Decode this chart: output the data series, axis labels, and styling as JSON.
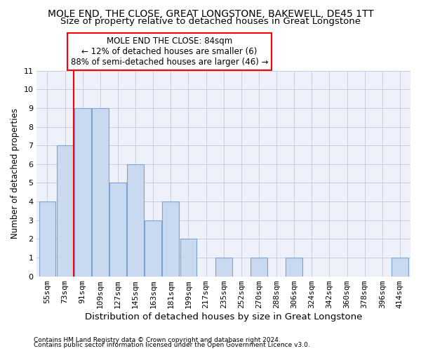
{
  "title": "MOLE END, THE CLOSE, GREAT LONGSTONE, BAKEWELL, DE45 1TT",
  "subtitle": "Size of property relative to detached houses in Great Longstone",
  "xlabel": "Distribution of detached houses by size in Great Longstone",
  "ylabel": "Number of detached properties",
  "categories": [
    "55sqm",
    "73sqm",
    "91sqm",
    "109sqm",
    "127sqm",
    "145sqm",
    "163sqm",
    "181sqm",
    "199sqm",
    "217sqm",
    "235sqm",
    "252sqm",
    "270sqm",
    "288sqm",
    "306sqm",
    "324sqm",
    "342sqm",
    "360sqm",
    "378sqm",
    "396sqm",
    "414sqm"
  ],
  "values": [
    4,
    7,
    9,
    9,
    5,
    6,
    3,
    4,
    2,
    0,
    1,
    0,
    1,
    0,
    1,
    0,
    0,
    0,
    0,
    0,
    1
  ],
  "bar_color": "#c9d9f0",
  "bar_edge_color": "#7ba4d4",
  "annotation_line1": "MOLE END THE CLOSE: 84sqm",
  "annotation_line2": "← 12% of detached houses are smaller (6)",
  "annotation_line3": "88% of semi-detached houses are larger (46) →",
  "annotation_box_color": "white",
  "annotation_box_edge_color": "red",
  "red_line_color": "red",
  "ylim": [
    0,
    11
  ],
  "yticks": [
    0,
    1,
    2,
    3,
    4,
    5,
    6,
    7,
    8,
    9,
    10,
    11
  ],
  "grid_color": "#c8d0e0",
  "footer1": "Contains HM Land Registry data © Crown copyright and database right 2024.",
  "footer2": "Contains public sector information licensed under the Open Government Licence v3.0.",
  "background_color": "#eef1fa",
  "title_fontsize": 10,
  "subtitle_fontsize": 9.5,
  "ylabel_fontsize": 8.5,
  "xlabel_fontsize": 9.5,
  "annotation_fontsize": 8.5,
  "tick_fontsize": 8,
  "footer_fontsize": 6.5
}
